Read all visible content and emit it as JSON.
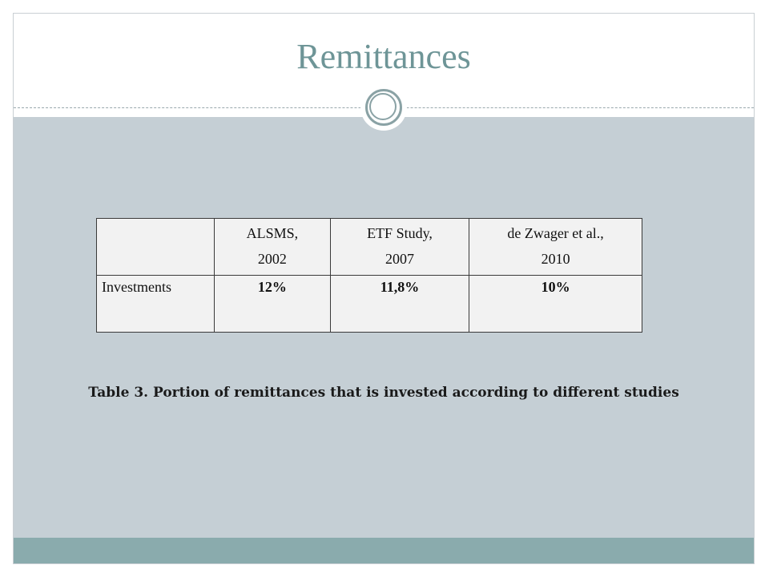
{
  "slide": {
    "title": "Remittances",
    "caption": "Table 3. Portion of remittances that is invested according to different studies"
  },
  "table": {
    "header": {
      "corner": "",
      "columns": [
        {
          "line1": "ALSMS,",
          "line2": "2002"
        },
        {
          "line1": "ETF Study,",
          "line2": "2007"
        },
        {
          "line1": "de Zwager et al.,",
          "line2": "2010"
        }
      ]
    },
    "rows": [
      {
        "label": "Investments",
        "values": [
          "12%",
          "11,8%",
          "10%"
        ]
      }
    ]
  },
  "colors": {
    "title": "#6e9597",
    "content_panel": "#c5cfd5",
    "footer_band": "#8aabad",
    "ornament_ring": "#8aa2a5",
    "table_fill": "#f2f2f2"
  }
}
